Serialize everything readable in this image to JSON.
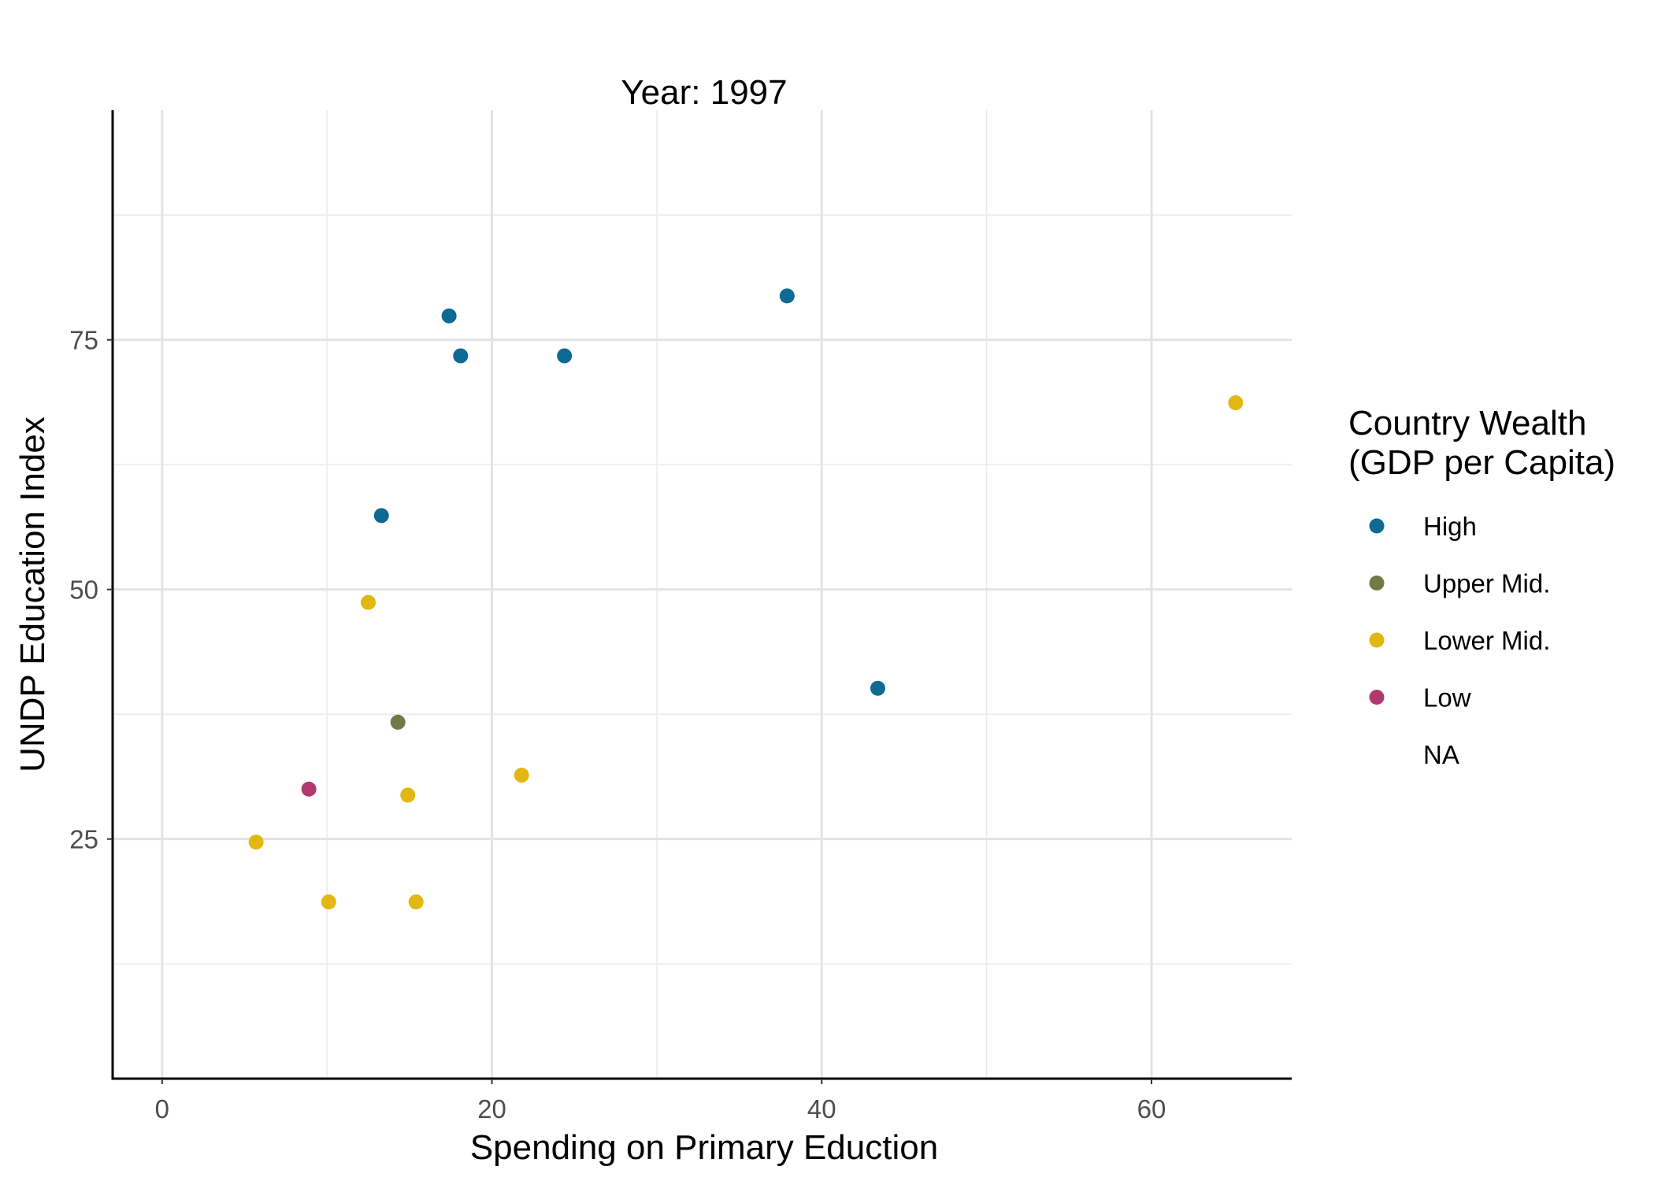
{
  "chart_data": {
    "type": "scatter",
    "title": "Year: 1997",
    "xlabel": "Spending on Primary Eduction",
    "ylabel": "UNDP Education Index",
    "xlim": [
      -3,
      68.5
    ],
    "ylim": [
      1,
      98
    ],
    "x_ticks": [
      0,
      20,
      40,
      60
    ],
    "y_ticks": [
      25,
      50,
      75
    ],
    "grid": true,
    "legend": {
      "title_line1": "Country Wealth",
      "title_line2": "(GDP per Capita)",
      "position": "right"
    },
    "series": [
      {
        "name": "High",
        "color": "#0f6a93",
        "points": [
          {
            "x": 17.4,
            "y": 77.4
          },
          {
            "x": 18.1,
            "y": 73.4
          },
          {
            "x": 24.4,
            "y": 73.4
          },
          {
            "x": 37.9,
            "y": 79.4
          },
          {
            "x": 13.3,
            "y": 57.4
          },
          {
            "x": 43.4,
            "y": 40.1
          }
        ]
      },
      {
        "name": "Upper Mid.",
        "color": "#6f7a46",
        "points": [
          {
            "x": 14.3,
            "y": 36.7
          }
        ]
      },
      {
        "name": "Lower Mid.",
        "color": "#e3b712",
        "points": [
          {
            "x": 65.1,
            "y": 68.7
          },
          {
            "x": 12.5,
            "y": 48.7
          },
          {
            "x": 21.8,
            "y": 31.4
          },
          {
            "x": 14.9,
            "y": 29.4
          },
          {
            "x": 5.7,
            "y": 24.7
          },
          {
            "x": 10.1,
            "y": 18.7
          },
          {
            "x": 15.4,
            "y": 18.7
          }
        ]
      },
      {
        "name": "Low",
        "color": "#b03a70",
        "points": [
          {
            "x": 8.9,
            "y": 30.0
          }
        ]
      },
      {
        "name": "NA",
        "color": "#ffffff",
        "points": []
      }
    ]
  }
}
